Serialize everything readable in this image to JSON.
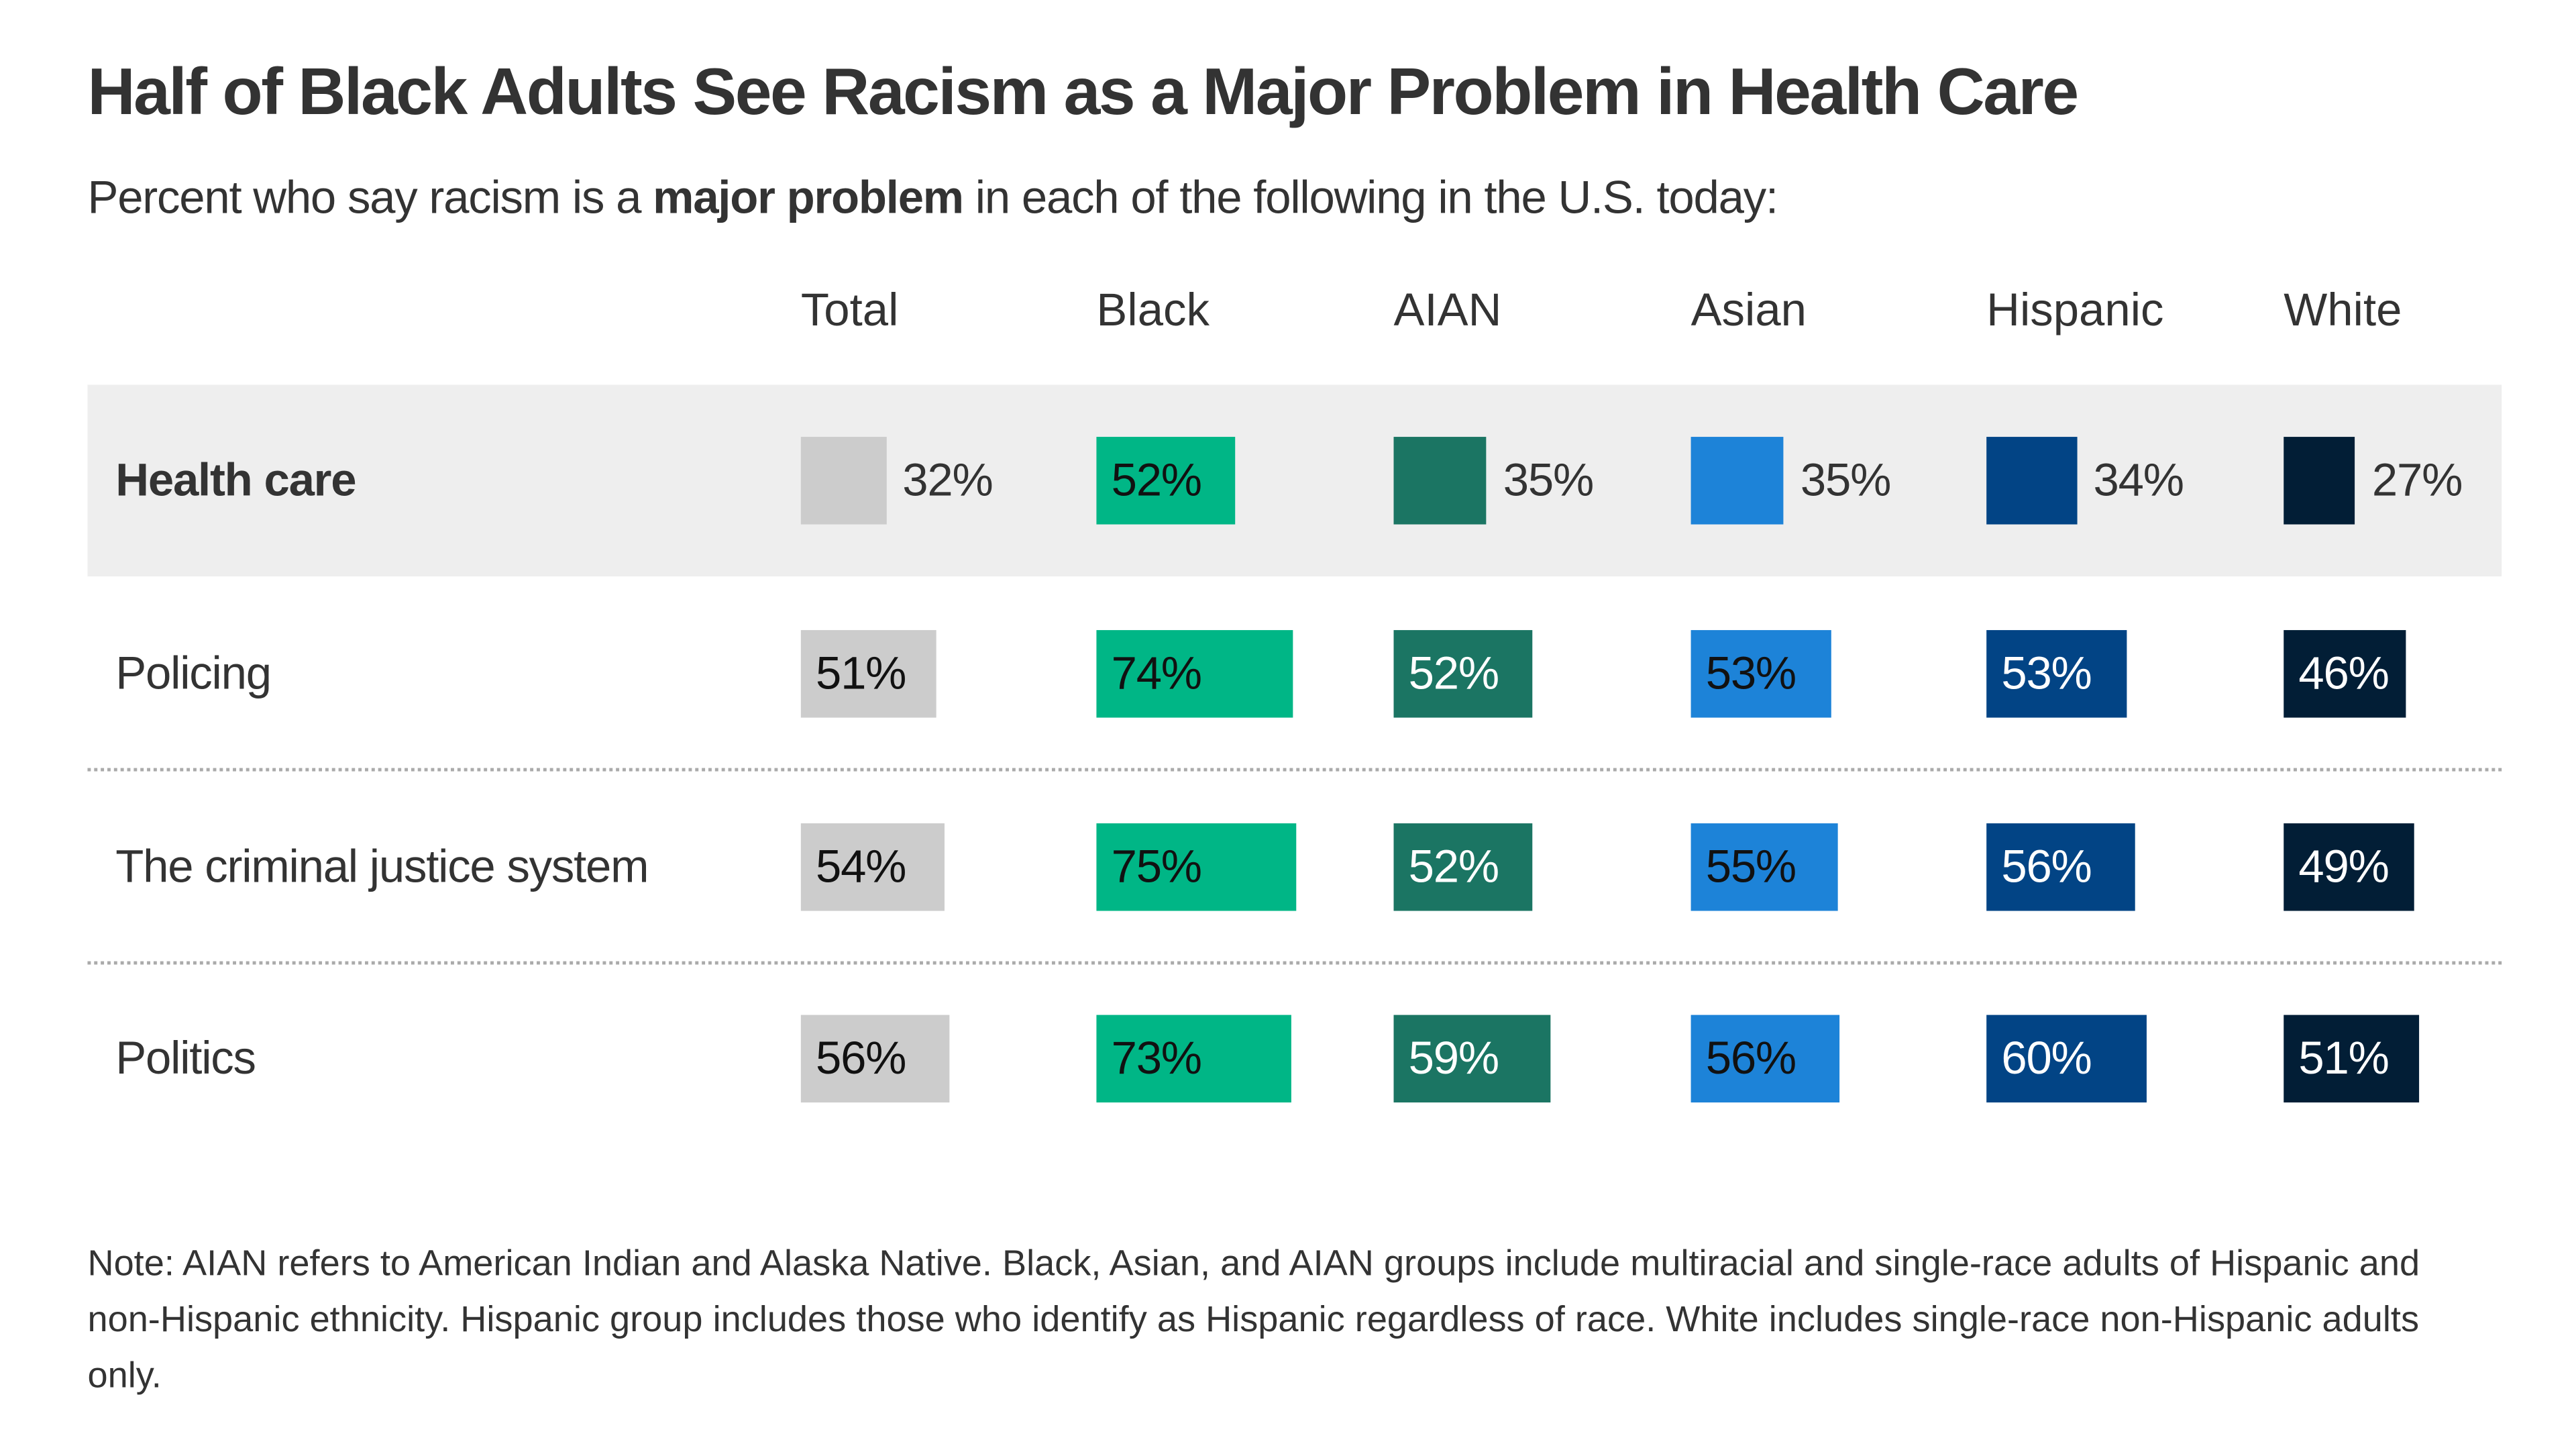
{
  "title": "Half of Black Adults See Racism as a Major Problem in Health Care",
  "subtitle": {
    "before": "Percent who say racism is a ",
    "bold": "major problem",
    "after": " in each of the following in the U.S. today:"
  },
  "note": "Note: AIAN refers to American Indian and Alaska Native. Black, Asian, and AIAN groups include multiracial and single-race adults of Hispanic and non-Hispanic ethnicity. Hispanic group includes those who identify as Hispanic regardless of race. White includes single-race non-Hispanic adults only.",
  "chart_data": {
    "type": "table",
    "title": "Half of Black Adults See Racism as a Major Problem in Health Care",
    "columns": [
      "Total",
      "Black",
      "AIAN",
      "Asian",
      "Hispanic",
      "White"
    ],
    "column_colors": [
      "#cccccc",
      "#00b686",
      "#1b7563",
      "#1d83d8",
      "#024485",
      "#021e36"
    ],
    "column_text_colors": [
      "#111111",
      "#111111",
      "#ffffff",
      "#111111",
      "#ffffff",
      "#ffffff"
    ],
    "highlighted_row": "Health care",
    "rows": [
      {
        "label": "Health care",
        "values": [
          32,
          52,
          35,
          35,
          34,
          27
        ]
      },
      {
        "label": "Policing",
        "values": [
          51,
          74,
          52,
          53,
          53,
          46
        ]
      },
      {
        "label": "The criminal justice system",
        "values": [
          54,
          75,
          52,
          55,
          56,
          49
        ]
      },
      {
        "label": "Politics",
        "values": [
          56,
          73,
          59,
          56,
          60,
          51
        ]
      }
    ],
    "unit": "%"
  }
}
